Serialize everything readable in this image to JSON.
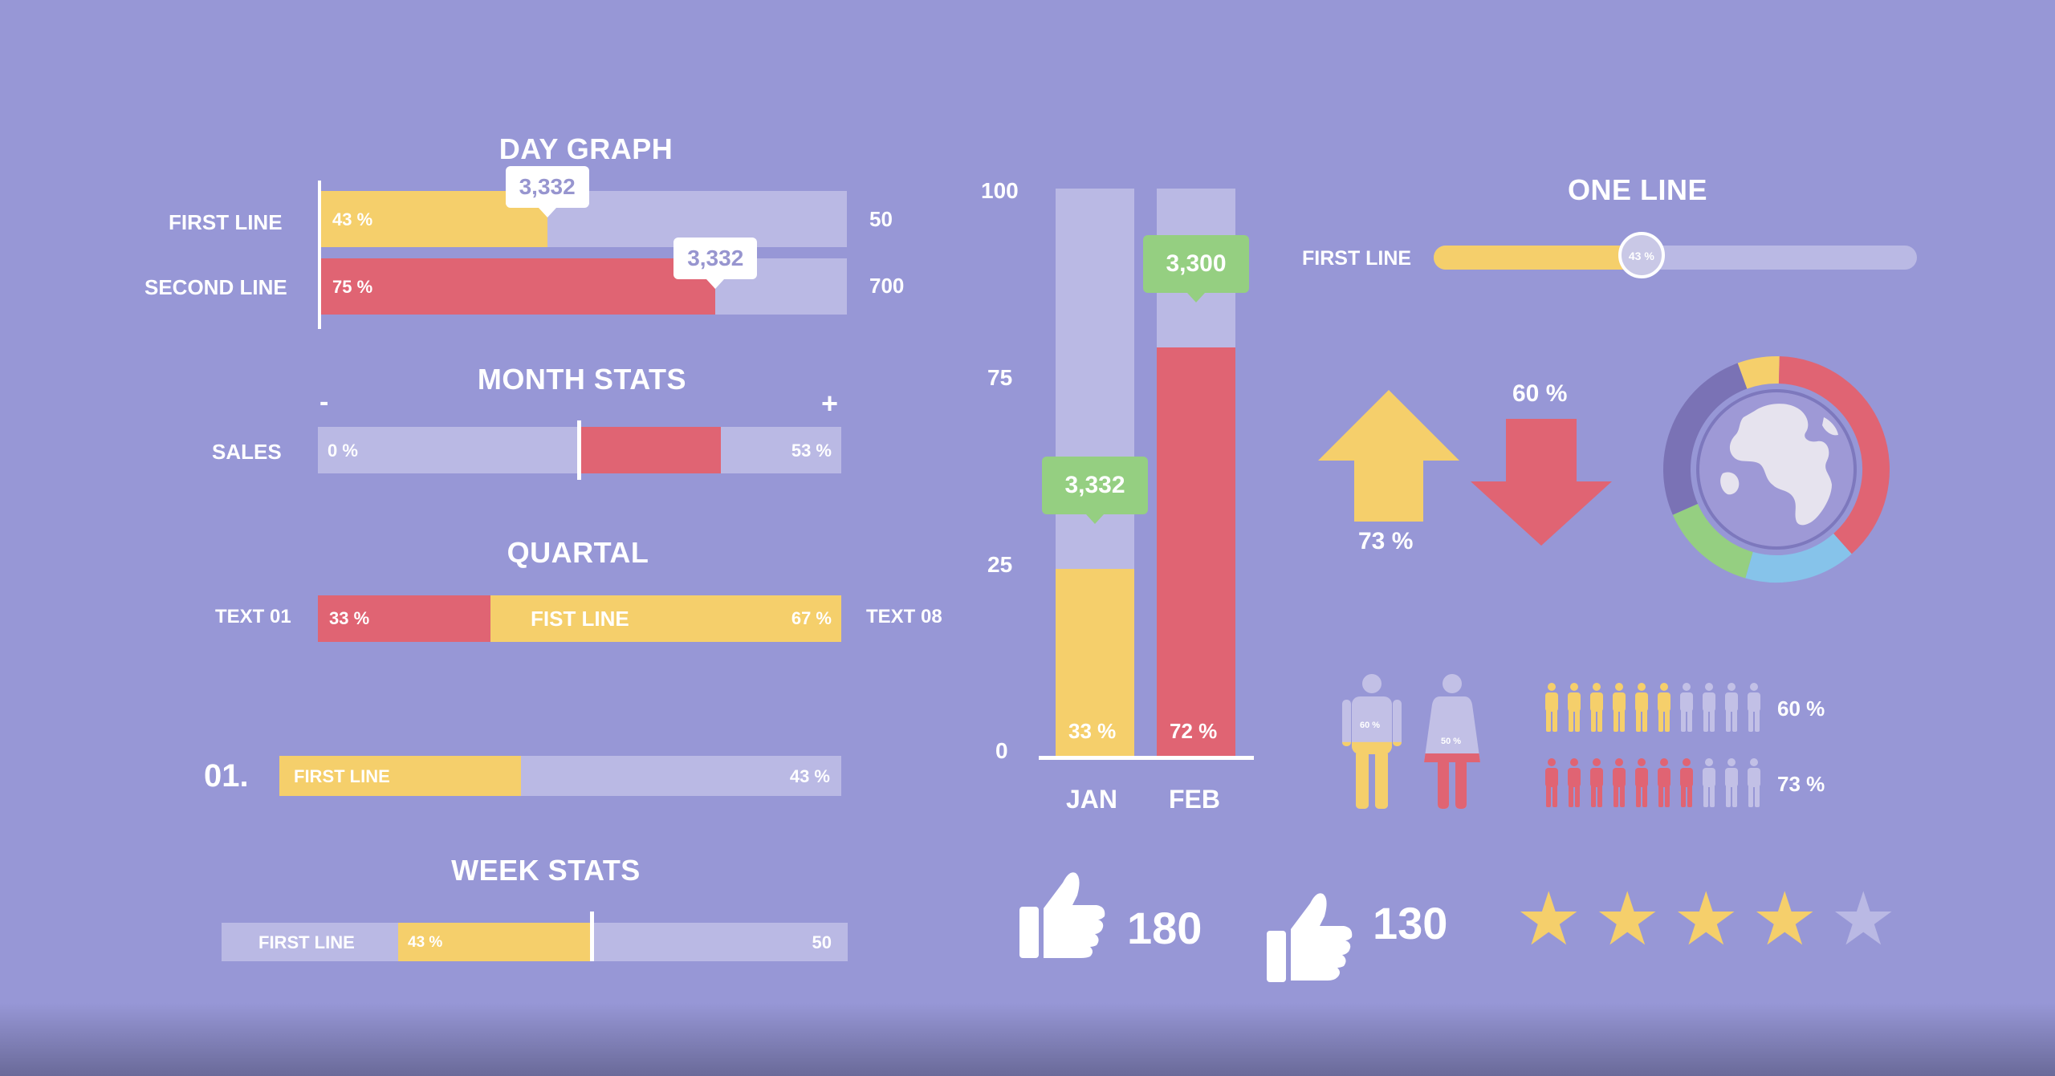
{
  "colors": {
    "background": "#9797d6",
    "track": "#bab9e4",
    "yellow": "#f5cf6b",
    "red": "#e06473",
    "green": "#95cf81",
    "blue": "#86c3ea",
    "purple": "#7a72b5",
    "white": "#ffffff"
  },
  "day_graph": {
    "title": "DAY GRAPH",
    "rows": [
      {
        "label": "FIRST LINE",
        "percent": 43,
        "percent_text": "43 %",
        "end_value": "50",
        "tooltip": "3,332",
        "color": "yellow"
      },
      {
        "label": "SECOND LINE",
        "percent": 75,
        "percent_text": "75 %",
        "end_value": "700",
        "tooltip": "3,332",
        "color": "red"
      }
    ]
  },
  "month_stats": {
    "title": "MONTH STATS",
    "minus": "-",
    "plus": "+",
    "label": "SALES",
    "left_text": "0 %",
    "right_text": "53 %",
    "start_fraction": 0.5,
    "end_fraction": 0.77
  },
  "quartal": {
    "title": "QUARTAL",
    "left_label": "TEXT 01",
    "right_label": "TEXT 08",
    "left_percent": 33,
    "left_text": "33 %",
    "middle_text": "FIST LINE",
    "right_text": "67 %"
  },
  "item_01": {
    "number": "01.",
    "label": "FIRST LINE",
    "percent": 43,
    "percent_text": "43 %"
  },
  "week_stats": {
    "title": "WEEK STATS",
    "label": "FIRST LINE",
    "percent": 43,
    "percent_text": "43 %",
    "end_value": "50"
  },
  "chart_data": [
    {
      "type": "bar",
      "title": "",
      "categories": [
        "JAN",
        "FEB"
      ],
      "ylim": [
        0,
        100
      ],
      "yticks": [
        "100",
        "75",
        "25",
        "0"
      ],
      "values": [
        33,
        72
      ],
      "value_labels": [
        "33 %",
        "72 %"
      ],
      "tooltips": [
        "3,332",
        "3,300"
      ],
      "colors": [
        "yellow",
        "red"
      ]
    }
  ],
  "one_line": {
    "title": "ONE LINE",
    "label": "FIRST LINE",
    "percent": 43,
    "knob_text": "43 %"
  },
  "arrows": {
    "up_text": "73 %",
    "down_text": "60 %"
  },
  "donut": {
    "segments": [
      {
        "color": "yellow",
        "fraction": 0.06
      },
      {
        "color": "red",
        "fraction": 0.38
      },
      {
        "color": "blue",
        "fraction": 0.16
      },
      {
        "color": "green",
        "fraction": 0.14
      },
      {
        "color": "purple",
        "fraction": 0.26
      }
    ]
  },
  "gender": {
    "male_text": "60 %",
    "female_text": "50 %",
    "male_fill": 0.6,
    "female_fill": 0.5
  },
  "people_rows": [
    {
      "color": "yellow",
      "filled": 6,
      "total": 10,
      "text": "60 %"
    },
    {
      "color": "red",
      "filled": 7,
      "total": 10,
      "text": "73 %"
    }
  ],
  "likes": {
    "up_count": "180",
    "down_count": "130"
  },
  "rating": {
    "value": 4,
    "max": 5,
    "glyph": "★"
  }
}
